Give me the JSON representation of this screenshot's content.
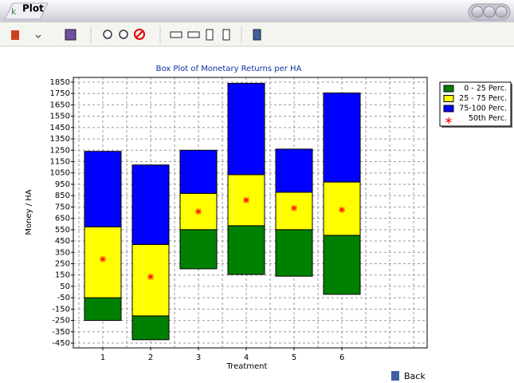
{
  "window": {
    "title": "Plot",
    "back_button": "Back"
  },
  "chart_data": {
    "type": "box",
    "title": "Box Plot of Monetary Returns per HA",
    "x_label": "Treatment",
    "y_label": "Money / HA",
    "categories": [
      "1",
      "2",
      "3",
      "4",
      "5",
      "6"
    ],
    "min": [
      -250,
      -420,
      205,
      155,
      140,
      -20
    ],
    "q1": [
      -50,
      -210,
      550,
      585,
      550,
      500
    ],
    "median": [
      290,
      135,
      710,
      810,
      740,
      725
    ],
    "q3": [
      575,
      420,
      870,
      1035,
      880,
      970
    ],
    "max": [
      1240,
      1120,
      1250,
      1840,
      1260,
      1755
    ],
    "legend": [
      {
        "name": "0 - 25 Perc.",
        "color": "#008000"
      },
      {
        "name": "25 - 75 Perc.",
        "color": "#ffff00"
      },
      {
        "name": "75-100 Perc.",
        "color": "#0000ff"
      },
      {
        "name": "50th Perc.",
        "color": "#ff0000"
      }
    ],
    "ylim": [
      -492,
      1892
    ],
    "yticks": [
      -450,
      -350,
      -250,
      -150,
      -50,
      50,
      150,
      250,
      350,
      450,
      550,
      650,
      750,
      850,
      950,
      1050,
      1150,
      1250,
      1350,
      1450,
      1550,
      1650,
      1750,
      1850
    ],
    "grid": true,
    "legend_position": "right"
  }
}
